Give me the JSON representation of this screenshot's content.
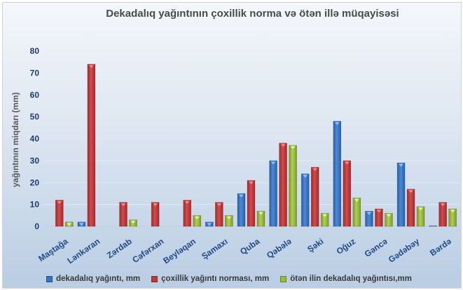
{
  "chart_data": {
    "type": "bar",
    "title": "Dekadalıq yağıntının çoxillik norma  və ötən illə müqayisəsi",
    "xlabel": "",
    "ylabel": "yağıntının miqdarı (mm)",
    "ylim": [
      0,
      80
    ],
    "yticks": [
      0,
      10,
      20,
      30,
      40,
      50,
      60,
      70,
      80
    ],
    "grid": true,
    "legend_position": "bottom",
    "categories": [
      "Maştağa",
      "Lənkəran",
      "Zərdab",
      "Cəfərxan",
      "Beyləqan",
      "Şamaxı",
      "Quba",
      "Qəbələ",
      "Şəki",
      "Oğuz",
      "Gəncə",
      "Gədəbəy",
      "Bərdə"
    ],
    "series": [
      {
        "name": "dekadalıq yağıntı, mm",
        "color": "#3a74c0",
        "values": [
          0,
          2,
          0,
          0,
          0,
          2,
          15,
          30,
          24,
          48,
          7,
          29,
          0.3
        ]
      },
      {
        "name": "çoxillik yağıntı norması, mm",
        "color": "#c0393a",
        "values": [
          12,
          74,
          11,
          11,
          12,
          11,
          21,
          38,
          27,
          30,
          8,
          17,
          11
        ]
      },
      {
        "name": "ötən ilin dekadalıq yağıntısı,mm",
        "color": "#9bbb3c",
        "values": [
          2,
          0,
          3,
          0,
          5,
          5,
          7,
          37,
          6,
          13,
          6,
          9,
          8
        ]
      }
    ]
  }
}
